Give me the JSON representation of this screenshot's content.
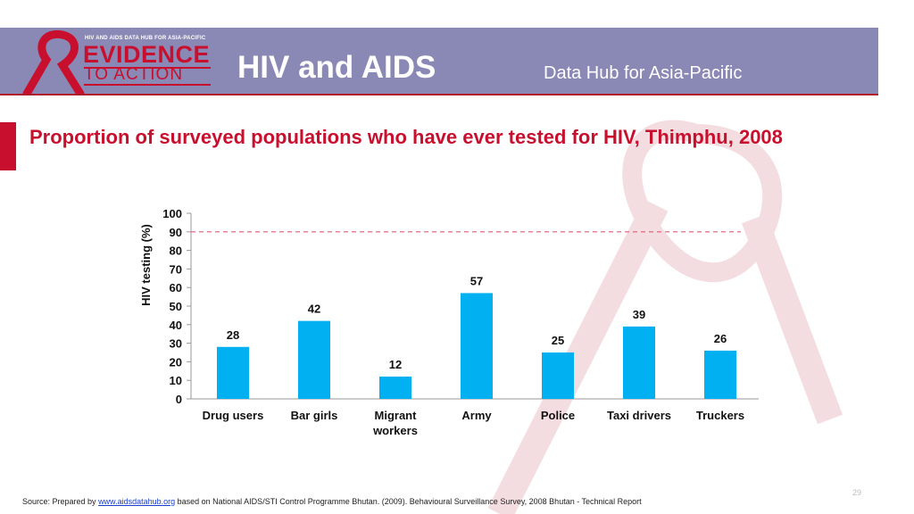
{
  "header": {
    "logo_tagline": "HIV AND AIDS DATA HUB FOR ASIA-PACIFIC",
    "logo_word1": "EVIDENCE",
    "logo_word2": "TO ACTION",
    "title": "HIV and AIDS",
    "subtitle": "Data Hub for Asia-Pacific"
  },
  "colors": {
    "header_bg": "#8a88b5",
    "accent_red": "#c8102e",
    "bar": "#00b0f0",
    "reference_line": "#e05a7a"
  },
  "chart_data": {
    "type": "bar",
    "title": "Proportion of surveyed populations who have ever tested for HIV, Thimphu, 2008",
    "ylabel": "HIV testing (%)",
    "xlabel": "",
    "ylim": [
      0,
      100
    ],
    "yticks": [
      0,
      10,
      20,
      30,
      40,
      50,
      60,
      70,
      80,
      90,
      100
    ],
    "categories": [
      "Drug users",
      "Bar girls",
      "Migrant workers",
      "Army",
      "Police",
      "Taxi drivers",
      "Truckers"
    ],
    "values": [
      28,
      42,
      12,
      57,
      25,
      39,
      26
    ],
    "reference_line": 90,
    "grid": false,
    "legend": "none"
  },
  "footer": {
    "source_prefix": "Source: Prepared by ",
    "source_link": "www.aidsdatahub.org",
    "source_suffix": " based on National AIDS/STI Control Programme Bhutan. (2009). Behavioural Surveillance Survey, 2008 Bhutan - Technical Report",
    "page_number": "29"
  }
}
